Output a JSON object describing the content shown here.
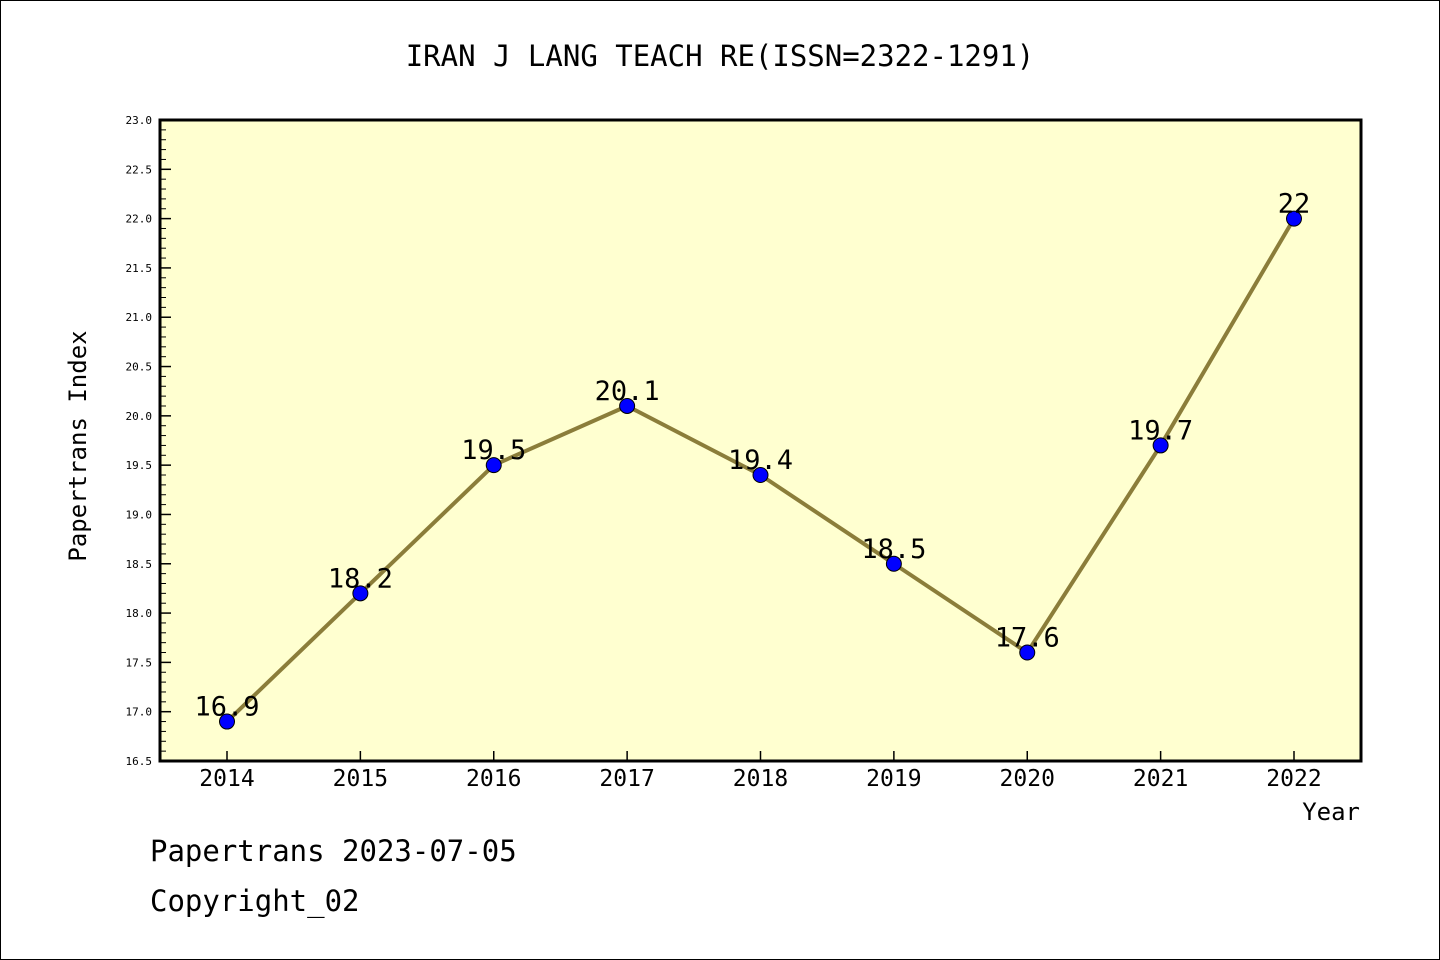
{
  "chart_data": {
    "type": "line",
    "title": "IRAN J LANG TEACH RE(ISSN=2322-1291)",
    "xlabel": "Year",
    "ylabel": "Papertrans Index",
    "categories": [
      "2014",
      "2015",
      "2016",
      "2017",
      "2018",
      "2019",
      "2020",
      "2021",
      "2022"
    ],
    "values": [
      16.9,
      18.2,
      19.5,
      20.1,
      19.4,
      18.5,
      17.6,
      19.7,
      22
    ],
    "data_labels": [
      "16.9",
      "18.2",
      "19.5",
      "20.1",
      "19.4",
      "18.5",
      "17.6",
      "19.7",
      "22"
    ],
    "ylim": [
      16.5,
      23.0
    ],
    "yticks": [
      "16.5",
      "17.0",
      "17.5",
      "18.0",
      "18.5",
      "19.0",
      "19.5",
      "20.0",
      "20.5",
      "21.0",
      "21.5",
      "22.0",
      "22.5",
      "23.0"
    ],
    "grid": false,
    "legend": "none",
    "colors": {
      "plot_background": "#ffffd0",
      "line": "#8b7d3a",
      "marker": "#0000ff",
      "axes": "#000000"
    }
  },
  "footer": {
    "date": "Papertrans 2023-07-05",
    "copyright": "Copyright_02"
  }
}
